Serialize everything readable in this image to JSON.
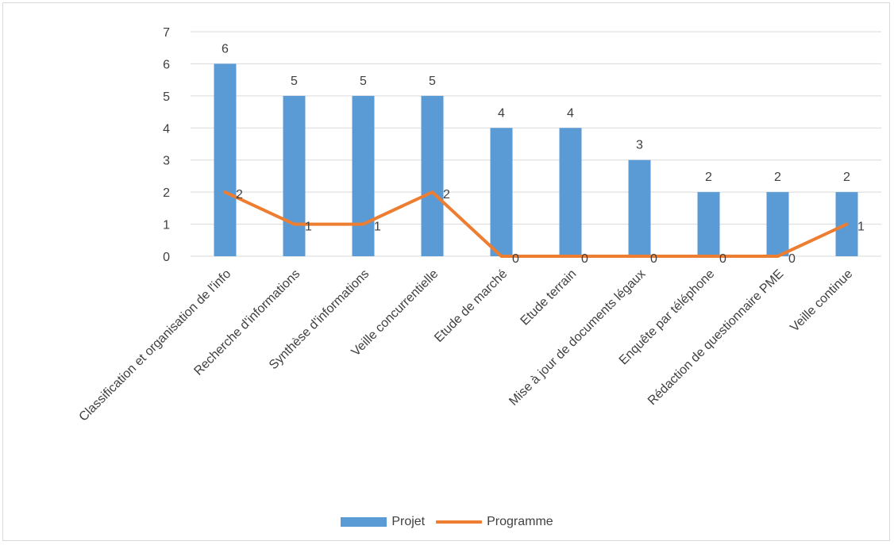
{
  "chart_data": {
    "type": "bar",
    "categories": [
      "Classification et organisation de l'info",
      "Recherche d'informations",
      "Synthèse d'informations",
      "Veille concurrentielle",
      "Etude de marché",
      "Etude terrain",
      "Mise à jour de documents légaux",
      "Enquête par téléphone",
      "Rédaction de questionnaire PME",
      "Veille continue"
    ],
    "series": [
      {
        "name": "Projet",
        "type": "bar",
        "color": "#5b9bd5",
        "values": [
          6,
          5,
          5,
          5,
          4,
          4,
          3,
          2,
          2,
          2
        ]
      },
      {
        "name": "Programme",
        "type": "line",
        "color": "#ed7d31",
        "values": [
          2,
          1,
          1,
          2,
          0,
          0,
          0,
          0,
          0,
          1
        ]
      }
    ],
    "title": "",
    "xlabel": "",
    "ylabel": "",
    "ylim": [
      0,
      7
    ],
    "yticks": [
      "0",
      "1",
      "2",
      "3",
      "4",
      "5",
      "6",
      "7"
    ],
    "grid": true,
    "data_labels": true,
    "legend_position": "bottom"
  }
}
